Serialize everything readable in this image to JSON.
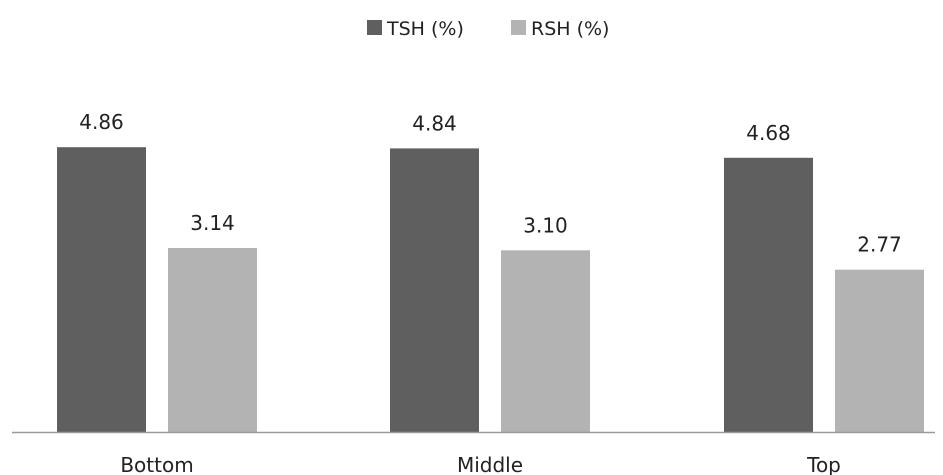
{
  "chart_data": {
    "type": "bar",
    "categories": [
      "Bottom",
      "Middle",
      "Top"
    ],
    "series": [
      {
        "name": "TSH (%)",
        "values": [
          4.86,
          4.84,
          4.68
        ],
        "color": "#5f5f5f"
      },
      {
        "name": "RSH (%)",
        "values": [
          3.14,
          3.1,
          2.77
        ],
        "color": "#b3b3b3"
      }
    ],
    "data_labels": [
      [
        "4.86",
        "4.84",
        "4.68"
      ],
      [
        "3.14",
        "3.10",
        "2.77"
      ]
    ],
    "title": "",
    "xlabel": "",
    "ylabel": "",
    "ylim": [
      0,
      5.5
    ],
    "grid": false,
    "legend_position": "top-center",
    "axis_color": "#999999"
  }
}
